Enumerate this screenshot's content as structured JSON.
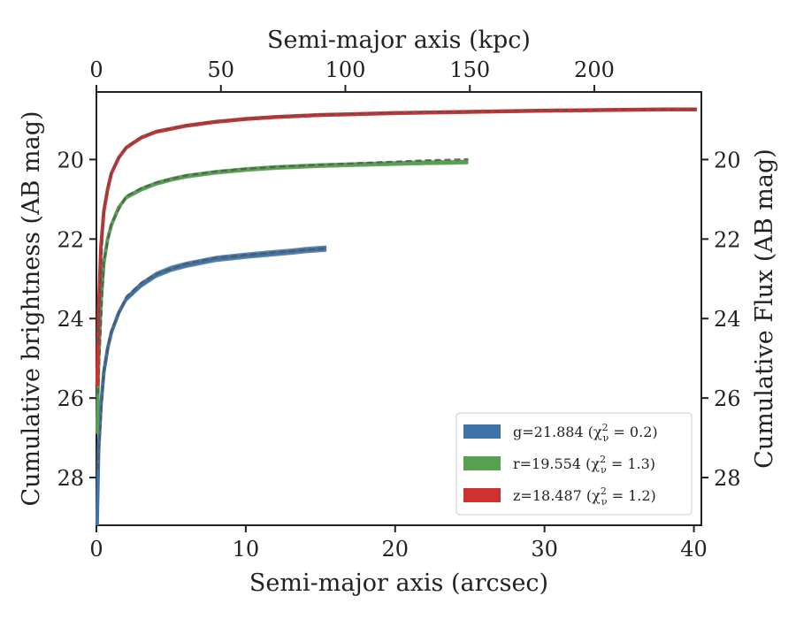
{
  "chart_data": {
    "type": "line",
    "title": "",
    "xlabel": "Semi-major axis (arcsec)",
    "x2label": "Semi-major axis (kpc)",
    "ylabel": "Cumulative brightness (AB mag)",
    "y2label": "Cumulative Flux (AB mag)",
    "xlim": [
      0,
      40.5
    ],
    "x2lim": [
      0,
      243
    ],
    "ylim": [
      29.2,
      18.3
    ],
    "y_inverted": true,
    "x_ticks": [
      0,
      10,
      20,
      30,
      40
    ],
    "x2_ticks": [
      0,
      50,
      100,
      150,
      200
    ],
    "y_ticks": [
      20,
      22,
      24,
      26,
      28
    ],
    "grid": false,
    "legend_position": "lower-right",
    "legend": [
      {
        "label": "g=21.884 (χ",
        "sub": "ν",
        "sup": "2",
        "tail": " = 0.2)"
      },
      {
        "label": "r=19.554 (χ",
        "sub": "ν",
        "sup": "2",
        "tail": " = 1.3)"
      },
      {
        "label": "z=18.487 (χ",
        "sub": "ν",
        "sup": "2",
        "tail": " = 1.2)"
      }
    ],
    "series": [
      {
        "color": "#3f72a6",
        "x": [
          0.05,
          0.15,
          0.3,
          0.5,
          0.75,
          1,
          1.5,
          2,
          3,
          4,
          5,
          6,
          8,
          10,
          12,
          13,
          14,
          15,
          15.4
        ],
        "values": [
          29.2,
          27.3,
          26.2,
          25.35,
          24.75,
          24.35,
          23.85,
          23.5,
          23.15,
          22.9,
          22.75,
          22.65,
          22.5,
          22.42,
          22.35,
          22.32,
          22.28,
          22.25,
          22.24
        ],
        "band": 0.08,
        "model_x": [
          0.1,
          0.5,
          1,
          2,
          3,
          4,
          6,
          8,
          10,
          12,
          14,
          15.4
        ],
        "model_values": [
          27.8,
          25.3,
          24.3,
          23.45,
          23.1,
          22.88,
          22.62,
          22.47,
          22.4,
          22.33,
          22.27,
          22.24
        ]
      },
      {
        "color": "#56a050",
        "x": [
          0.05,
          0.15,
          0.3,
          0.5,
          0.75,
          1,
          1.5,
          2,
          3,
          4,
          5,
          6,
          8,
          10,
          12,
          15,
          18,
          20,
          22,
          24,
          24.9
        ],
        "values": [
          26.9,
          25.0,
          23.6,
          22.6,
          22.0,
          21.65,
          21.2,
          20.95,
          20.75,
          20.6,
          20.5,
          20.42,
          20.32,
          20.25,
          20.2,
          20.15,
          20.12,
          20.1,
          20.08,
          20.07,
          20.06
        ],
        "band": 0.06,
        "model_x": [
          0.1,
          0.5,
          1,
          2,
          3,
          4,
          6,
          8,
          10,
          12,
          15,
          18,
          20,
          22,
          24.9
        ],
        "model_values": [
          25.9,
          22.55,
          21.6,
          20.92,
          20.72,
          20.58,
          20.4,
          20.3,
          20.23,
          20.18,
          20.13,
          20.08,
          20.05,
          20.02,
          19.99
        ]
      },
      {
        "color": "#d03030",
        "x": [
          0.05,
          0.15,
          0.3,
          0.5,
          0.75,
          1,
          1.5,
          2,
          3,
          4,
          6,
          8,
          10,
          12,
          15,
          20,
          25,
          30,
          35,
          38,
          40.2
        ],
        "values": [
          25.7,
          23.8,
          22.2,
          21.3,
          20.75,
          20.35,
          19.95,
          19.7,
          19.45,
          19.3,
          19.15,
          19.05,
          18.98,
          18.93,
          18.88,
          18.83,
          18.8,
          18.77,
          18.75,
          18.74,
          18.74
        ],
        "band": 0.05,
        "model_x": [
          0.1,
          0.5,
          1,
          2,
          3,
          4,
          6,
          8,
          10,
          12,
          15,
          20,
          25,
          30,
          35,
          40.2
        ],
        "model_values": [
          24.6,
          21.2,
          20.3,
          19.67,
          19.43,
          19.29,
          19.14,
          19.04,
          18.97,
          18.92,
          18.87,
          18.82,
          18.79,
          18.76,
          18.74,
          18.73
        ]
      }
    ]
  }
}
